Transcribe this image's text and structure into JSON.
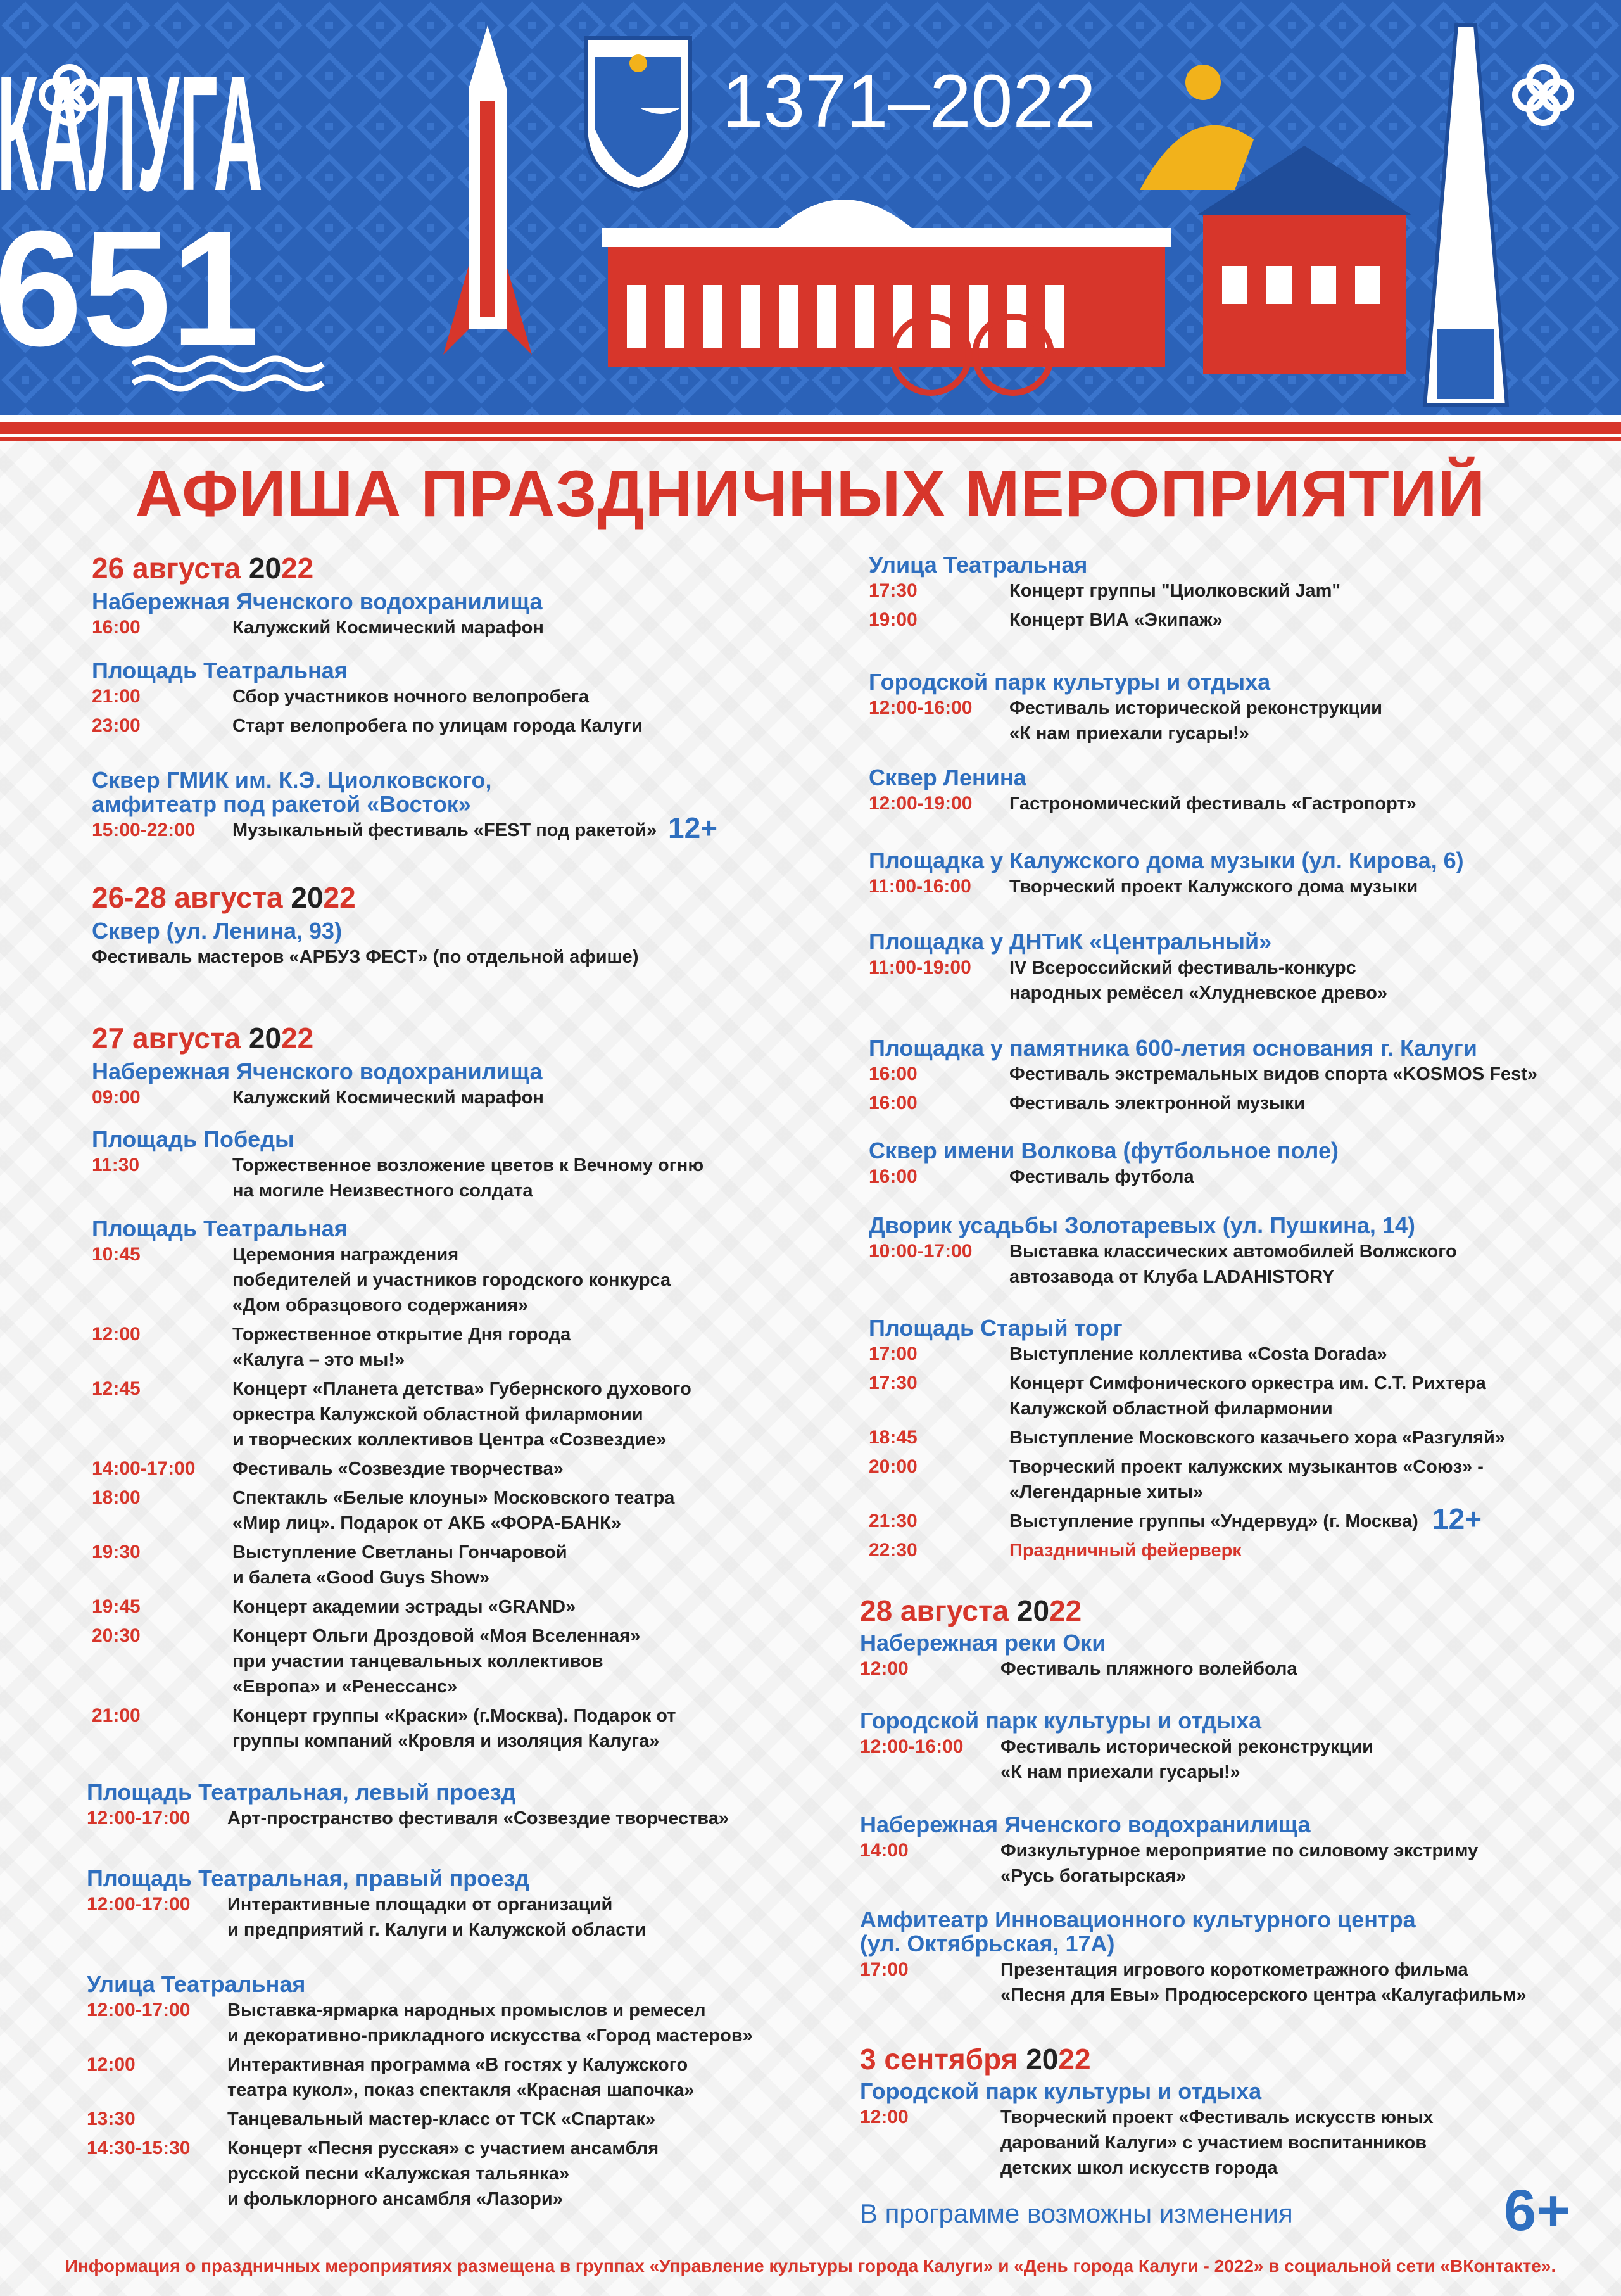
{
  "header": {
    "city": "КАЛУГА",
    "age": "651",
    "years": "1371–2022",
    "colors": {
      "blue": "#2b62b8",
      "red": "#d7362b",
      "white": "#ffffff",
      "gold": "#f2b21b"
    }
  },
  "title": "АФИША ПРАЗДНИЧНЫХ МЕРОПРИЯТИЙ",
  "left": [
    {
      "date": "26 августа ",
      "year": [
        "20",
        "22"
      ]
    },
    {
      "venue": [
        "Набережная Яченского водохранилища"
      ],
      "events": [
        {
          "time": "16:00",
          "desc": [
            "Калужский Космический марафон"
          ]
        }
      ]
    },
    {
      "venue": [
        "Площадь Театральная"
      ],
      "events": [
        {
          "time": "21:00",
          "desc": [
            "Сбор участников ночного велопробега"
          ]
        },
        {
          "time": "23:00",
          "desc": [
            "Старт велопробега по улицам города Калуги"
          ]
        }
      ]
    },
    {
      "venue": [
        "Сквер ГМИК им. К.Э. Циолковского,",
        "амфитеатр под ракетой «Восток»"
      ],
      "events": [
        {
          "time": "15:00-22:00",
          "desc": [
            "Музыкальный фестиваль «FEST под ракетой»"
          ],
          "badge": "12+"
        }
      ]
    },
    {
      "date": "26-28 августа ",
      "year": [
        "20",
        "22"
      ]
    },
    {
      "venue": [
        "Сквер (ул. Ленина, 93)"
      ],
      "events": [
        {
          "time": "",
          "desc": [
            "Фестиваль мастеров «АРБУЗ ФЕСТ» (по отдельной афише)"
          ]
        }
      ]
    },
    {
      "date": "27 августа ",
      "year": [
        "20",
        "22"
      ]
    },
    {
      "venue": [
        "Набережная Яченского водохранилища"
      ],
      "events": [
        {
          "time": "09:00",
          "desc": [
            "Калужский Космический марафон"
          ]
        }
      ]
    },
    {
      "venue": [
        "Площадь Победы"
      ],
      "events": [
        {
          "time": "11:30",
          "desc": [
            "Торжественное возложение цветов к Вечному огню",
            "на могиле Неизвестного солдата"
          ]
        }
      ]
    },
    {
      "venue": [
        "Площадь Театральная"
      ],
      "events": [
        {
          "time": "10:45",
          "desc": [
            "Церемония награждения",
            "победителей и участников городского конкурса",
            "«Дом образцового содержания»"
          ]
        },
        {
          "time": "12:00",
          "desc": [
            "Торжественное открытие Дня города",
            "«Калуга – это мы!»"
          ]
        },
        {
          "time": "12:45",
          "desc": [
            "Концерт «Планета детства» Губернского духового",
            "оркестра Калужской областной филармонии",
            "и творческих коллективов Центра «Созвездие»"
          ]
        },
        {
          "time": "14:00-17:00",
          "desc": [
            "Фестиваль «Созвездие творчества»"
          ]
        },
        {
          "time": "18:00",
          "desc": [
            "Спектакль «Белые клоуны» Московского театра",
            "«Мир лиц». Подарок от АКБ «ФОРА-БАНК»"
          ]
        },
        {
          "time": "19:30",
          "desc": [
            "Выступление Светланы Гончаровой",
            "и балета «Good Guys Show»"
          ]
        },
        {
          "time": "19:45",
          "desc": [
            "Концерт академии эстрады «GRAND»"
          ]
        },
        {
          "time": "20:30",
          "desc": [
            "Концерт Ольги Дроздовой «Моя Вселенная»",
            "при участии танцевальных коллективов",
            "«Европа» и «Ренессанс»"
          ]
        },
        {
          "time": "21:00",
          "desc": [
            "Концерт группы «Краски» (г.Москва). Подарок от",
            "группы компаний «Кровля и изоляция Калуга»"
          ]
        }
      ]
    },
    {
      "venue": [
        "Площадь Театральная, левый проезд"
      ],
      "events": [
        {
          "time": "12:00-17:00",
          "desc": [
            "Арт-пространство фестиваля «Созвездие творчества»"
          ]
        }
      ]
    },
    {
      "venue": [
        "Площадь Театральная, правый проезд"
      ],
      "events": [
        {
          "time": "12:00-17:00",
          "desc": [
            "Интерактивные площадки от организаций",
            "и предприятий г. Калуги и Калужской области"
          ]
        }
      ]
    },
    {
      "venue": [
        "Улица Театральная"
      ],
      "events": [
        {
          "time": "12:00-17:00",
          "desc": [
            "Выставка-ярмарка народных промыслов и ремесел",
            "и декоративно-прикладного искусства «Город мастеров»"
          ]
        },
        {
          "time": "12:00",
          "desc": [
            "Интерактивная программа «В гостях у Калужского",
            "театра кукол», показ спектакля «Красная шапочка»"
          ]
        },
        {
          "time": "13:30",
          "desc": [
            "Танцевальный мастер-класс от ТСК «Спартак»"
          ]
        },
        {
          "time": "14:30-15:30",
          "desc": [
            "Концерт «Песня русская» с участием ансамбля",
            "русской песни «Калужская тальянка»",
            "и фольклорного ансамбля «Лазори»"
          ]
        }
      ]
    }
  ],
  "right": [
    {
      "venue": [
        "Улица Театральная"
      ],
      "events": [
        {
          "time": "17:30",
          "desc": [
            "Концерт группы \"Циолковский Jam\""
          ]
        },
        {
          "time": "19:00",
          "desc": [
            "Концерт ВИА «Экипаж»"
          ]
        }
      ]
    },
    {
      "venue": [
        "Городской парк культуры и отдыха"
      ],
      "events": [
        {
          "time": "12:00-16:00",
          "desc": [
            "Фестиваль исторической реконструкции",
            "«К нам приехали гусары!»"
          ]
        }
      ]
    },
    {
      "venue": [
        "Сквер Ленина"
      ],
      "events": [
        {
          "time": "12:00-19:00",
          "desc": [
            "Гастрономический фестиваль «Гастропорт»"
          ]
        }
      ]
    },
    {
      "venue": [
        "Площадка у Калужского дома музыки (ул. Кирова, 6)"
      ],
      "events": [
        {
          "time": "11:00-16:00",
          "desc": [
            "Творческий проект Калужского дома музыки"
          ]
        }
      ]
    },
    {
      "venue": [
        "Площадка у ДНТиК «Центральный»"
      ],
      "events": [
        {
          "time": "11:00-19:00",
          "desc": [
            "IV Всероссийский фестиваль-конкурс",
            "народных ремёсел «Хлудневское древо»"
          ]
        }
      ]
    },
    {
      "venue": [
        "Площадка у памятника 600-летия основания г. Калуги"
      ],
      "events": [
        {
          "time": "16:00",
          "desc": [
            "Фестиваль экстремальных видов спорта «KOSMOS Fest»"
          ]
        },
        {
          "time": "16:00",
          "desc": [
            "Фестиваль электронной музыки"
          ]
        }
      ]
    },
    {
      "venue": [
        "Сквер имени Волкова (футбольное поле)"
      ],
      "events": [
        {
          "time": "16:00",
          "desc": [
            "Фестиваль футбола"
          ]
        }
      ]
    },
    {
      "venue": [
        "Дворик усадьбы Золотаревых (ул. Пушкина, 14)"
      ],
      "events": [
        {
          "time": "10:00-17:00",
          "desc": [
            "Выставка классических автомобилей Волжского",
            "автозавода от Клуба LADAHISTORY"
          ]
        }
      ]
    },
    {
      "venue": [
        "Площадь Старый торг"
      ],
      "events": [
        {
          "time": "17:00",
          "desc": [
            "Выступление коллектива «Costa Dorada»"
          ]
        },
        {
          "time": "17:30",
          "desc": [
            "Концерт Симфонического оркестра им. С.Т. Рихтера",
            "Калужской областной филармонии"
          ]
        },
        {
          "time": "18:45",
          "desc": [
            "Выступление Московского казачьего хора «Разгуляй»"
          ]
        },
        {
          "time": "20:00",
          "desc": [
            "Творческий проект калужских музыкантов «Союз» -",
            "«Легендарные хиты»"
          ]
        },
        {
          "time": "21:30",
          "desc": [
            "Выступление группы «Ундервуд» (г. Москва)"
          ],
          "badge": "12+"
        },
        {
          "time": "22:30",
          "desc": [
            "Праздничный фейерверк"
          ],
          "highlight": true
        }
      ]
    },
    {
      "date": "28 августа ",
      "year": [
        "20",
        "22"
      ]
    },
    {
      "venue": [
        "Набережная реки Оки"
      ],
      "events": [
        {
          "time": "12:00",
          "desc": [
            "Фестиваль пляжного волейбола"
          ]
        }
      ]
    },
    {
      "venue": [
        "Городской парк культуры и отдыха"
      ],
      "events": [
        {
          "time": "12:00-16:00",
          "desc": [
            "Фестиваль исторической реконструкции",
            "«К нам приехали гусары!»"
          ]
        }
      ]
    },
    {
      "venue": [
        "Набережная Яченского водохранилища"
      ],
      "events": [
        {
          "time": "14:00",
          "desc": [
            "Физкультурное мероприятие по силовому экстриму",
            "«Русь богатырская»"
          ]
        }
      ]
    },
    {
      "venue": [
        "Амфитеатр Инновационного культурного центра",
        "(ул. Октябрьская, 17А)"
      ],
      "events": [
        {
          "time": "17:00",
          "desc": [
            "Презентация игрового короткометражного фильма",
            "«Песня для Евы» Продюсерского центра «Калугафильм»"
          ]
        }
      ]
    },
    {
      "date": "3 сентября ",
      "year": [
        "20",
        "22"
      ]
    },
    {
      "venue": [
        "Городской парк культуры и отдыха"
      ],
      "events": [
        {
          "time": "12:00",
          "desc": [
            "Творческий проект «Фестиваль искусств юных",
            "дарований Калуги» с участием воспитанников",
            "детских школ искусств города"
          ]
        }
      ]
    }
  ],
  "note": "В программе возможны изменения",
  "age_rating": "6+",
  "footer": "Информация о праздничных мероприятиях размещена в группах «Управление культуры города Калуги» и «День города Калуги - 2022» в социальной сети «ВКонтакте»."
}
